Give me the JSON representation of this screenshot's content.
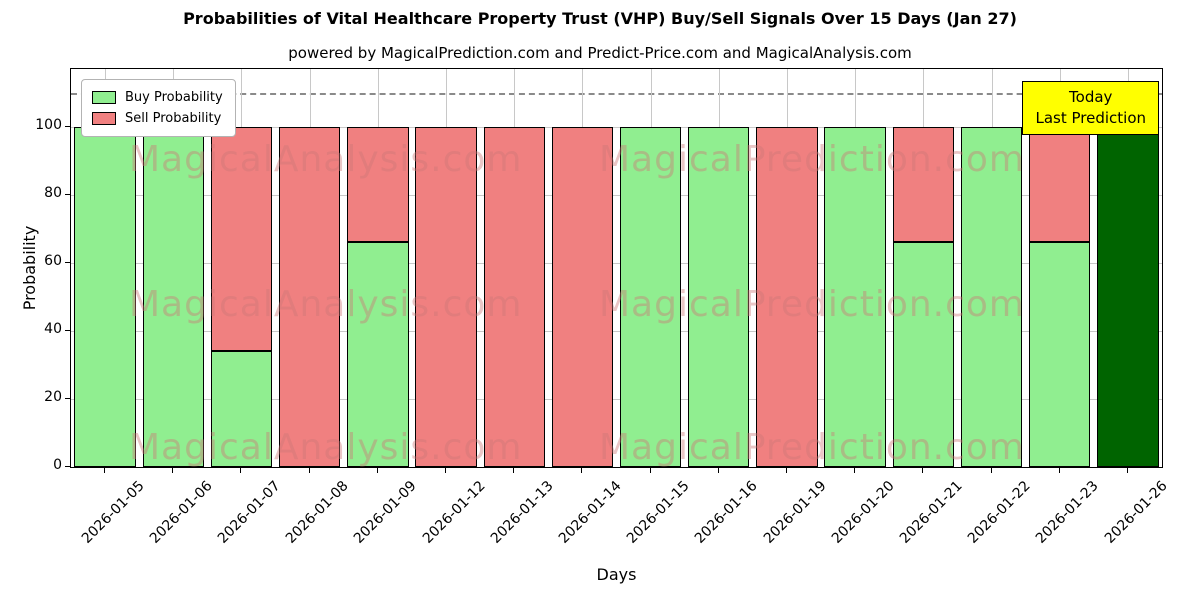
{
  "chart_data": {
    "type": "bar",
    "stacked": true,
    "title": "Probabilities of Vital Healthcare Property Trust (VHP) Buy/Sell Signals Over 15 Days (Jan 27)",
    "subtitle": "powered by MagicalPrediction.com and Predict-Price.com and MagicalAnalysis.com",
    "xlabel": "Days",
    "ylabel": "Probability",
    "categories": [
      "2026-01-05",
      "2026-01-06",
      "2026-01-07",
      "2026-01-08",
      "2026-01-09",
      "2026-01-12",
      "2026-01-13",
      "2026-01-14",
      "2026-01-15",
      "2026-01-16",
      "2026-01-19",
      "2026-01-20",
      "2026-01-21",
      "2026-01-22",
      "2026-01-23",
      "2026-01-26"
    ],
    "series": [
      {
        "name": "Buy Probability",
        "color": "#90ee90",
        "values": [
          100,
          100,
          34,
          0,
          66,
          0,
          0,
          0,
          100,
          100,
          0,
          100,
          66,
          100,
          66,
          100
        ]
      },
      {
        "name": "Sell Probability",
        "color": "#f08080",
        "values": [
          0,
          0,
          66,
          100,
          34,
          100,
          100,
          100,
          0,
          0,
          100,
          0,
          34,
          0,
          34,
          0
        ]
      }
    ],
    "yticks": [
      0,
      20,
      40,
      60,
      80,
      100
    ],
    "ylim": [
      0,
      117
    ],
    "grid": true,
    "legend_position": "upper left",
    "dashed_line_y": 110,
    "today_index": 15,
    "today_color": "#006400",
    "annotation": {
      "line1": "Today",
      "line2": "Last Prediction",
      "bg": "#ffff00"
    },
    "watermark_texts": [
      "MagicalAnalysis.com",
      "MagicalPrediction.com"
    ]
  }
}
